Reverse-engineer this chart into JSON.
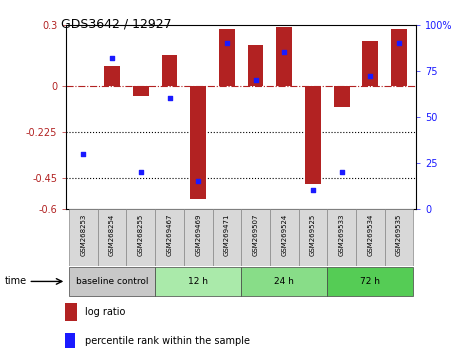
{
  "title": "GDS3642 / 12927",
  "samples": [
    "GSM268253",
    "GSM268254",
    "GSM268255",
    "GSM269467",
    "GSM269469",
    "GSM269471",
    "GSM269507",
    "GSM269524",
    "GSM269525",
    "GSM269533",
    "GSM269534",
    "GSM269535"
  ],
  "log_ratio": [
    0.0,
    0.1,
    -0.05,
    0.15,
    -0.55,
    0.28,
    0.2,
    0.29,
    -0.48,
    -0.1,
    0.22,
    0.28
  ],
  "percentile_rank": [
    30,
    82,
    20,
    60,
    15,
    90,
    70,
    85,
    10,
    20,
    72,
    90
  ],
  "bar_color": "#b22222",
  "dot_color": "#1a1aff",
  "ylim_left": [
    -0.6,
    0.3
  ],
  "ylim_right": [
    0,
    100
  ],
  "yticks_left": [
    0.3,
    0.0,
    -0.225,
    -0.45,
    -0.6
  ],
  "yticks_left_labels": [
    "0.3",
    "0",
    "-0.225",
    "-0.45",
    "-0.6"
  ],
  "yticks_right": [
    100,
    75,
    50,
    25,
    0
  ],
  "yticks_right_labels": [
    "100%",
    "75",
    "50",
    "25",
    "0"
  ],
  "hline_zero": 0.0,
  "hline_m225": -0.225,
  "hline_m45": -0.45,
  "groups": [
    {
      "label": "baseline control",
      "start": 0,
      "end": 3,
      "color": "#c8c8c8"
    },
    {
      "label": "12 h",
      "start": 3,
      "end": 6,
      "color": "#aaeaaa"
    },
    {
      "label": "24 h",
      "start": 6,
      "end": 9,
      "color": "#88dd88"
    },
    {
      "label": "72 h",
      "start": 9,
      "end": 12,
      "color": "#55cc55"
    }
  ],
  "legend_log_ratio": "log ratio",
  "legend_percentile": "percentile rank within the sample",
  "time_label": "time",
  "background_color": "#ffffff",
  "bar_width": 0.55
}
